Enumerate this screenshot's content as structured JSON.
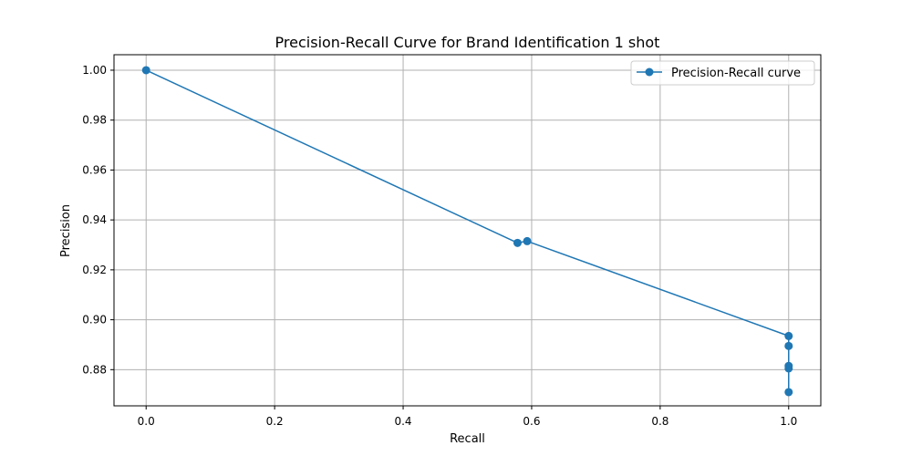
{
  "chart_data": {
    "type": "line",
    "title": "Precision-Recall Curve for Brand Identification 1 shot",
    "xlabel": "Recall",
    "ylabel": "Precision",
    "xlim": [
      -0.05,
      1.05
    ],
    "ylim": [
      0.8655,
      1.0062
    ],
    "x_ticks": [
      0.0,
      0.2,
      0.4,
      0.6,
      0.8,
      1.0
    ],
    "x_tick_labels": [
      "0.0",
      "0.2",
      "0.4",
      "0.6",
      "0.8",
      "1.0"
    ],
    "y_ticks": [
      0.88,
      0.9,
      0.92,
      0.94,
      0.96,
      0.98,
      1.0
    ],
    "y_tick_labels": [
      "0.88",
      "0.90",
      "0.92",
      "0.94",
      "0.96",
      "0.98",
      "1.00"
    ],
    "grid": true,
    "legend_position": "top-right",
    "series": [
      {
        "name": "Precision-Recall curve",
        "color": "#1f77b4",
        "marker": "circle",
        "x": [
          0.0,
          0.578,
          0.593,
          1.0,
          1.0,
          1.0,
          1.0,
          1.0
        ],
        "y": [
          1.0,
          0.9308,
          0.9315,
          0.8935,
          0.8895,
          0.8815,
          0.8805,
          0.871
        ]
      }
    ]
  }
}
